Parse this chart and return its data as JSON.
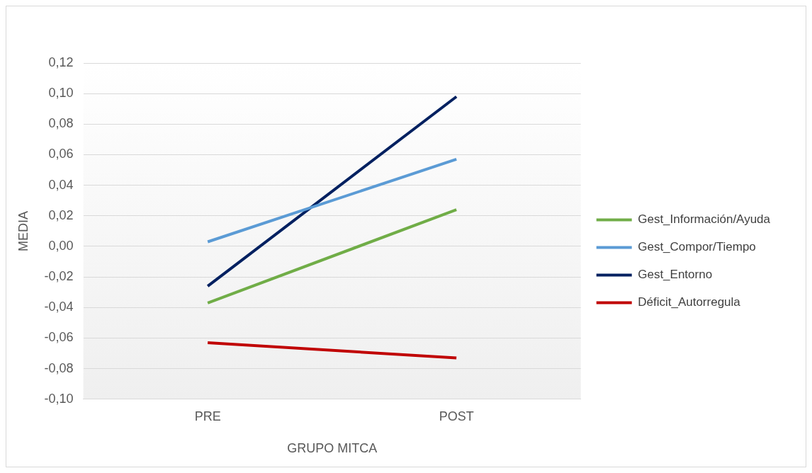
{
  "chart_data": {
    "type": "line",
    "xlabel": "GRUPO MITCA",
    "ylabel": "MEDIA",
    "categories": [
      "PRE",
      "POST"
    ],
    "series": [
      {
        "name": "Gest_Información/Ayuda",
        "color": "#70ad47",
        "values": [
          -0.037,
          0.024
        ]
      },
      {
        "name": "Gest_Compor/Tiempo",
        "color": "#5b9bd5",
        "values": [
          0.003,
          0.057
        ]
      },
      {
        "name": "Gest_Entorno",
        "color": "#002060",
        "values": [
          -0.026,
          0.098
        ]
      },
      {
        "name": "Déficit_Autorregula",
        "color": "#c00000",
        "values": [
          -0.063,
          -0.073
        ]
      }
    ],
    "ylim": [
      -0.1,
      0.12
    ],
    "yticks": [
      {
        "value": -0.1,
        "label": "-0,10"
      },
      {
        "value": -0.08,
        "label": "-0,08"
      },
      {
        "value": -0.06,
        "label": "-0,06"
      },
      {
        "value": -0.04,
        "label": "-0,04"
      },
      {
        "value": -0.02,
        "label": "-0,02"
      },
      {
        "value": 0,
        "label": "0,00"
      },
      {
        "value": 0.02,
        "label": "0,02"
      },
      {
        "value": 0.04,
        "label": "0,04"
      },
      {
        "value": 0.06,
        "label": "0,06"
      },
      {
        "value": 0.08,
        "label": "0,08"
      },
      {
        "value": 0.1,
        "label": "0,10"
      },
      {
        "value": 0.12,
        "label": "0,12"
      }
    ],
    "grid": "y",
    "legend": "right",
    "marker": "none",
    "line_style": "solid"
  }
}
